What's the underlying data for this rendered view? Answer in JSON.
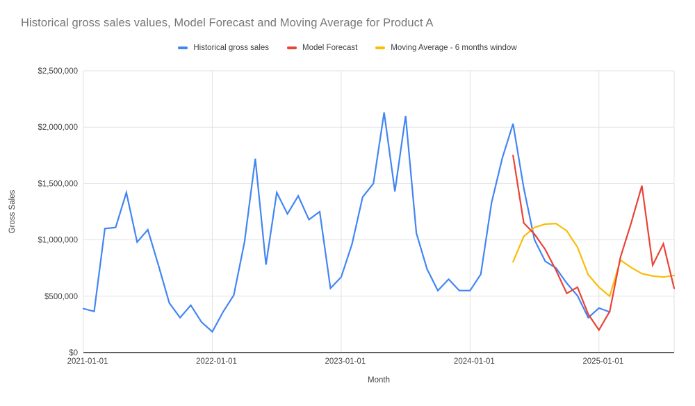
{
  "chart": {
    "title": "Historical gross sales values, Model Forecast and Moving Average for Product A",
    "x_axis_title": "Month",
    "y_axis_title": "Gross Sales"
  },
  "chart_data": {
    "type": "line",
    "title": "Historical gross sales values, Model Forecast and Moving Average for Product A",
    "xlabel": "Month",
    "ylabel": "Gross Sales",
    "grid": true,
    "legend_position": "top-center",
    "background": "#ffffff",
    "gridline_color": "#e2e2e2",
    "axis_line_color": "#616161",
    "tick_label_color": "#424242",
    "ylim": [
      0,
      2500000
    ],
    "months_total": 55,
    "x_ticks": [
      {
        "label": "2021-01-01",
        "month_index": 0
      },
      {
        "label": "2022-01-01",
        "month_index": 12
      },
      {
        "label": "2023-01-01",
        "month_index": 24
      },
      {
        "label": "2024-01-01",
        "month_index": 36
      },
      {
        "label": "2025-01-01",
        "month_index": 48
      }
    ],
    "y_ticks": [
      {
        "label": "$0",
        "value": 0
      },
      {
        "label": "$500,000",
        "value": 500000
      },
      {
        "label": "$1,000,000",
        "value": 1000000
      },
      {
        "label": "$1,500,000",
        "value": 1500000
      },
      {
        "label": "$2,000,000",
        "value": 2000000
      },
      {
        "label": "$2,500,000",
        "value": 2500000
      }
    ],
    "series": [
      {
        "name": "Historical gross sales",
        "color": "#4285F4",
        "start_month": "2021-01",
        "start_month_index": 0,
        "values": [
          390000,
          365000,
          1100000,
          1110000,
          1420000,
          980000,
          1090000,
          770000,
          440000,
          310000,
          420000,
          270000,
          185000,
          360000,
          510000,
          980000,
          1720000,
          780000,
          1420000,
          1230000,
          1390000,
          1180000,
          1250000,
          570000,
          670000,
          960000,
          1380000,
          1500000,
          2130000,
          1430000,
          2100000,
          1060000,
          740000,
          550000,
          650000,
          550000,
          550000,
          695000,
          1330000,
          1725000,
          2030000,
          1460000,
          1000000,
          810000,
          750000,
          615000,
          505000,
          310000,
          395000,
          360000
        ]
      },
      {
        "name": "Moving Average - 6 months window",
        "color": "#FBBC04",
        "start_month": "2024-05",
        "start_month_index": 40,
        "values": [
          805000,
          1030000,
          1110000,
          1140000,
          1145000,
          1080000,
          935000,
          690000,
          580000,
          500000,
          820000,
          755000,
          700000,
          680000,
          670000,
          685000
        ]
      },
      {
        "name": "Model Forecast",
        "color": "#EA4335",
        "start_month": "2024-05",
        "start_month_index": 40,
        "values": [
          1750000,
          1150000,
          1050000,
          915000,
          730000,
          525000,
          580000,
          340000,
          200000,
          365000,
          845000,
          1150000,
          1480000,
          775000,
          965000,
          570000
        ]
      }
    ],
    "legend_order": [
      0,
      2,
      1
    ]
  }
}
